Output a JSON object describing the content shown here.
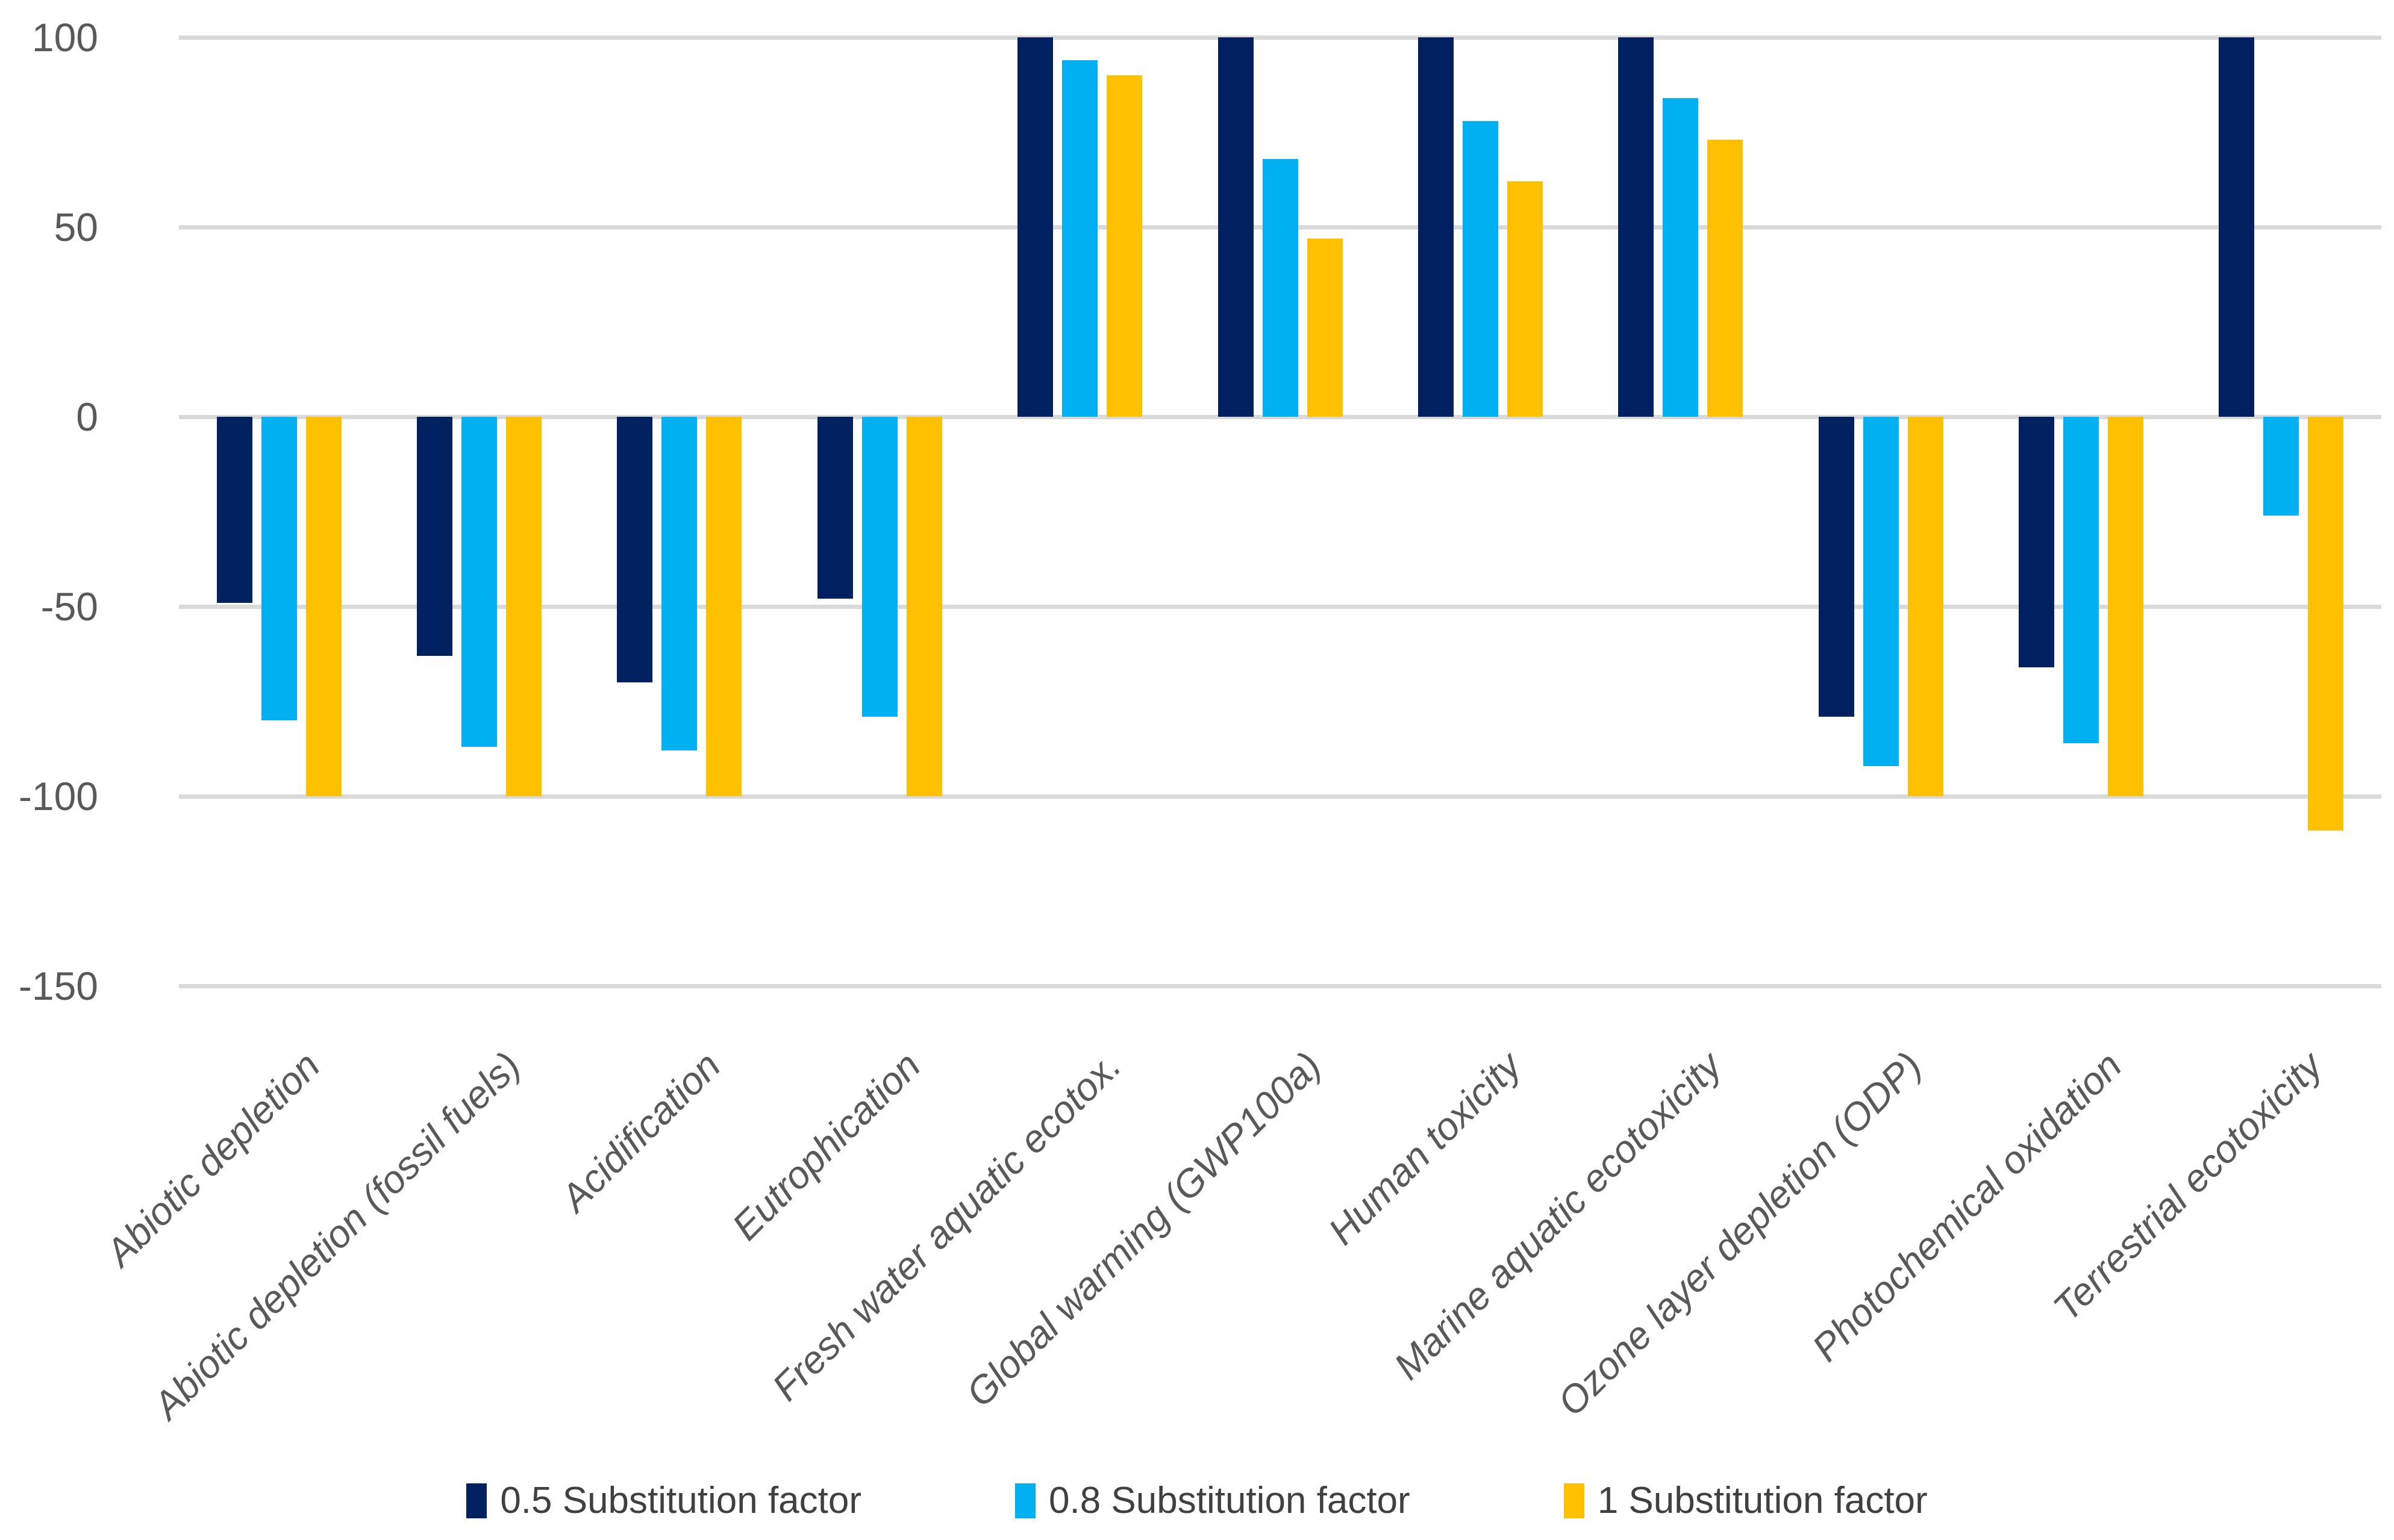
{
  "chart_data": {
    "type": "bar",
    "title": "",
    "xlabel": "",
    "ylabel": "",
    "categories": [
      "Abiotic depletion",
      "Abiotic depletion (fossil fuels)",
      "Acidification",
      "Eutrophication",
      "Fresh water aquatic ecotox.",
      "Global warming (GWP100a)",
      "Human toxicity",
      "Marine aquatic ecotoxicity",
      "Ozone layer depletion (ODP)",
      "Photochemical oxidation",
      "Terrestrial ecotoxicity"
    ],
    "series": [
      {
        "name": "0.5 Substitution factor",
        "color": "#002060",
        "values": [
          -49,
          -63,
          -70,
          -48,
          100,
          100,
          100,
          100,
          -79,
          -66,
          100
        ]
      },
      {
        "name": "0.8 Substitution factor",
        "color": "#00B0F0",
        "values": [
          -80,
          -87,
          -88,
          -79,
          94,
          68,
          78,
          84,
          -92,
          -86,
          -26
        ]
      },
      {
        "name": "1 Substitution factor",
        "color": "#FFC000",
        "values": [
          -100,
          -100,
          -100,
          -100,
          90,
          47,
          62,
          73,
          -100,
          -100,
          -109
        ]
      }
    ],
    "ylim": [
      -150,
      100
    ],
    "ytick_interval": 50,
    "ytick_labels": [
      "100",
      "50",
      "0",
      "-50",
      "-100",
      "-150"
    ],
    "ytick_values": [
      100,
      50,
      0,
      -50,
      -100,
      -150
    ],
    "grid": "horizontal",
    "gridline_color": "#D9D9D9",
    "axis_text_color": "#595959",
    "legend_text_color": "#404040",
    "legend_position": "bottom",
    "x_labels_rotation_deg": -45,
    "x_labels_italic": true
  }
}
